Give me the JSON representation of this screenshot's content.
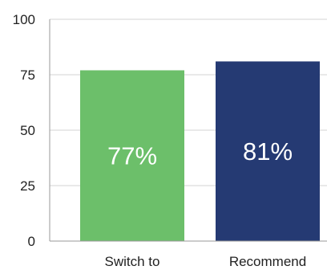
{
  "chart_data": {
    "type": "bar",
    "categories": [
      "Switch to",
      "Recommend"
    ],
    "values": [
      77,
      81
    ],
    "data_labels": [
      "77%",
      "81%"
    ],
    "bar_colors": [
      "#6cbf6a",
      "#253a73"
    ],
    "ylim": [
      0,
      100
    ],
    "yticks": [
      "0",
      "25",
      "50",
      "75",
      "100"
    ],
    "ytick_values": [
      0,
      25,
      50,
      75,
      100
    ],
    "gridline_color": "#d3d3d3",
    "axis_color": "#9a9a9a",
    "grid": true,
    "legend": false
  }
}
